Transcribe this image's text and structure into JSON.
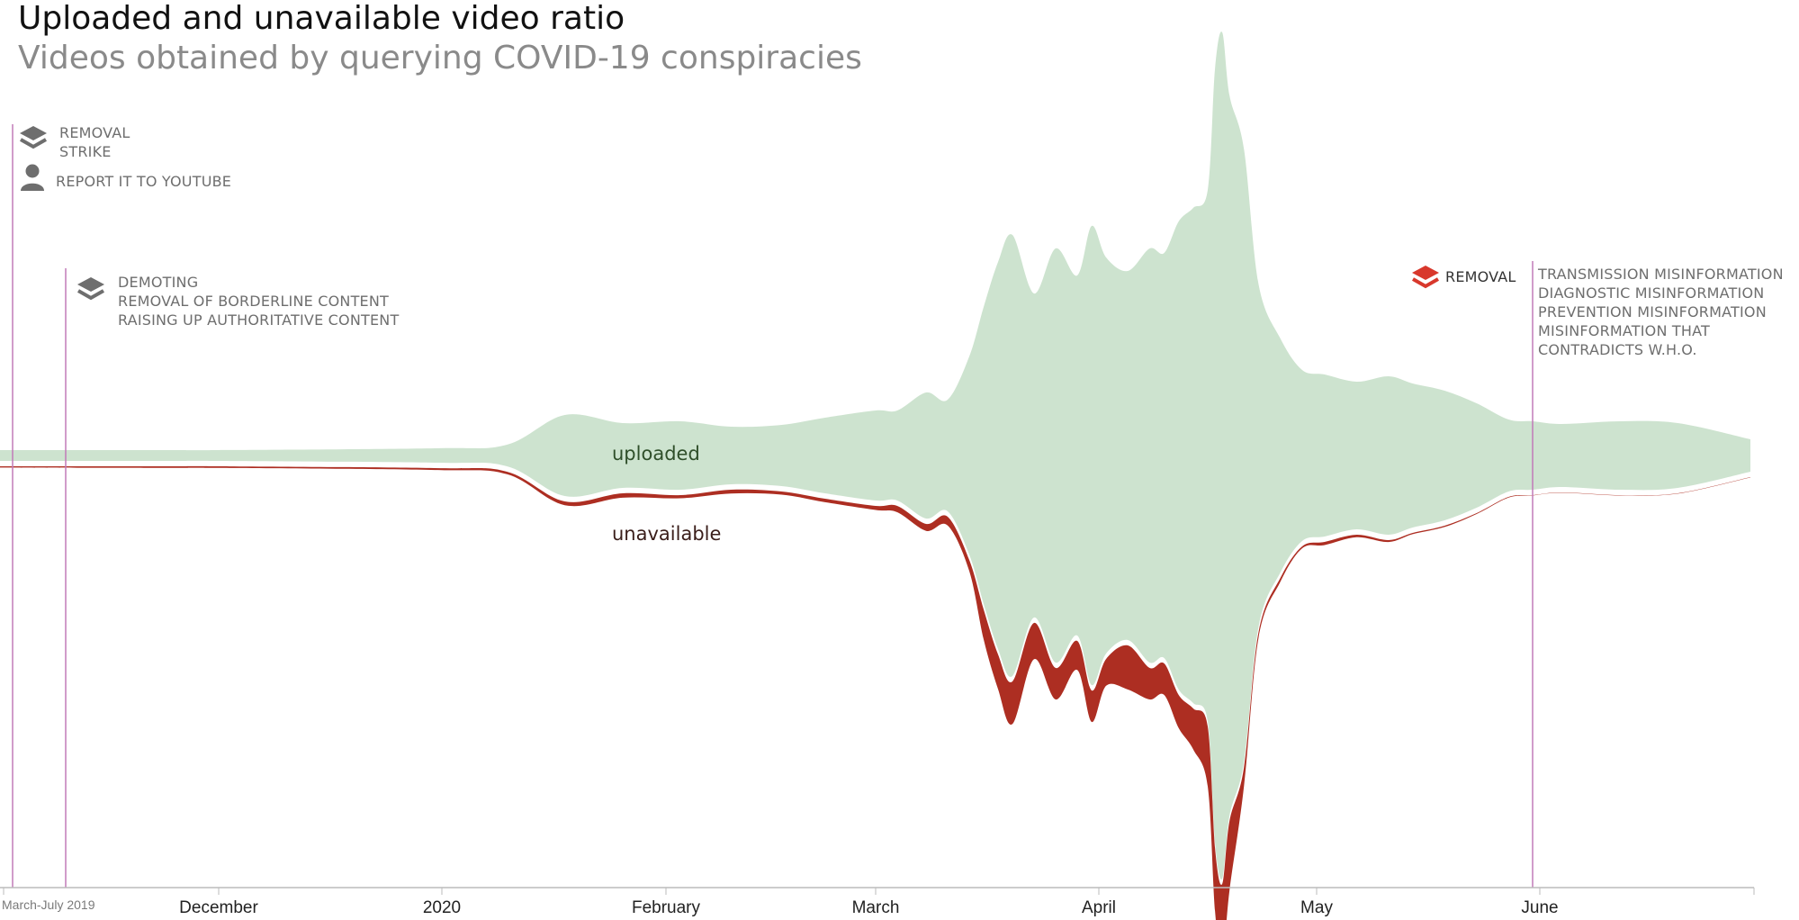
{
  "title": "Uploaded and unavailable video ratio",
  "subtitle": "Videos obtained by querying COVID-19 conspiracies",
  "colors": {
    "uploaded": "#cde3cf",
    "unavailable": "#ad2e22",
    "policy_line": "#c27bb8",
    "axis": "#bbbbbb",
    "label_gray": "#6e6e6e",
    "removal_icon": "#d8382c"
  },
  "policies": {
    "p1": {
      "lines": [
        "REMOVAL",
        "STRIKE"
      ],
      "icon": "layers-icon",
      "x": "2019-10-01"
    },
    "p1_report": {
      "text": "REPORT IT TO YOUTUBE",
      "icon": "person-icon"
    },
    "p2": {
      "lines": [
        "DEMOTING",
        "REMOVAL OF BORDERLINE CONTENT",
        "RAISING UP AUTHORITATIVE CONTENT"
      ],
      "icon": "layers-icon",
      "x": "2019-10-15"
    },
    "p3": {
      "label": "REMOVAL",
      "icon": "layers-icon",
      "lines": [
        "TRANSMISSION MISINFORMATION",
        "DIAGNOSTIC MISINFORMATION",
        "PREVENTION MISINFORMATION",
        "MISINFORMATION THAT",
        "CONTRADICTS W.H.O."
      ],
      "x": "2020-05-28"
    }
  },
  "series_labels": {
    "uploaded": "uploaded",
    "unavailable": "unavailable"
  },
  "chart_data": {
    "type": "area",
    "xaxis": {
      "range": [
        "2019-10-01",
        "2020-06-30"
      ],
      "ticks": [
        {
          "label": "March-July 2019",
          "date": "2019-10-01"
        },
        {
          "label": "December",
          "date": "2019-12-01"
        },
        {
          "label": "2020",
          "date": "2020-01-01"
        },
        {
          "label": "February",
          "date": "2020-02-01"
        },
        {
          "label": "March",
          "date": "2020-03-01"
        },
        {
          "label": "April",
          "date": "2020-04-01"
        },
        {
          "label": "May",
          "date": "2020-05-01"
        },
        {
          "label": "June",
          "date": "2020-06-01"
        }
      ]
    },
    "x": [
      "2019-10-01",
      "2019-11-15",
      "2019-12-01",
      "2019-12-31",
      "2020-01-10",
      "2020-01-18",
      "2020-01-26",
      "2020-02-03",
      "2020-02-10",
      "2020-02-17",
      "2020-02-23",
      "2020-03-01",
      "2020-03-04",
      "2020-03-08",
      "2020-03-11",
      "2020-03-14",
      "2020-03-16",
      "2020-03-18",
      "2020-03-20",
      "2020-03-23",
      "2020-03-26",
      "2020-03-29",
      "2020-03-31",
      "2020-04-02",
      "2020-04-05",
      "2020-04-08",
      "2020-04-10",
      "2020-04-12",
      "2020-04-14",
      "2020-04-16",
      "2020-04-17",
      "2020-04-18",
      "2020-04-19",
      "2020-04-21",
      "2020-04-23",
      "2020-04-26",
      "2020-04-29",
      "2020-05-02",
      "2020-05-06",
      "2020-05-10",
      "2020-05-13",
      "2020-05-17",
      "2020-05-21",
      "2020-05-25",
      "2020-05-28",
      "2020-06-04",
      "2020-06-12",
      "2020-06-20",
      "2020-06-30"
    ],
    "uploaded": [
      6,
      6,
      6,
      8,
      12,
      45,
      36,
      38,
      32,
      34,
      42,
      50,
      50,
      70,
      62,
      110,
      165,
      215,
      245,
      180,
      230,
      200,
      255,
      220,
      205,
      230,
      225,
      260,
      275,
      295,
      430,
      470,
      400,
      340,
      190,
      130,
      95,
      90,
      82,
      88,
      80,
      72,
      58,
      40,
      38,
      35,
      38,
      36,
      18
    ],
    "unavailable": [
      4,
      5,
      5,
      6,
      8,
      12,
      14,
      10,
      12,
      10,
      11,
      13,
      20,
      22,
      28,
      35,
      95,
      110,
      135,
      115,
      100,
      92,
      100,
      85,
      140,
      100,
      100,
      105,
      130,
      190,
      200,
      240,
      220,
      60,
      18,
      12,
      6,
      10,
      8,
      6,
      4,
      4,
      3,
      2,
      1,
      1,
      1,
      1,
      1
    ],
    "ylabel": "",
    "title": "Uploaded and unavailable video ratio"
  }
}
